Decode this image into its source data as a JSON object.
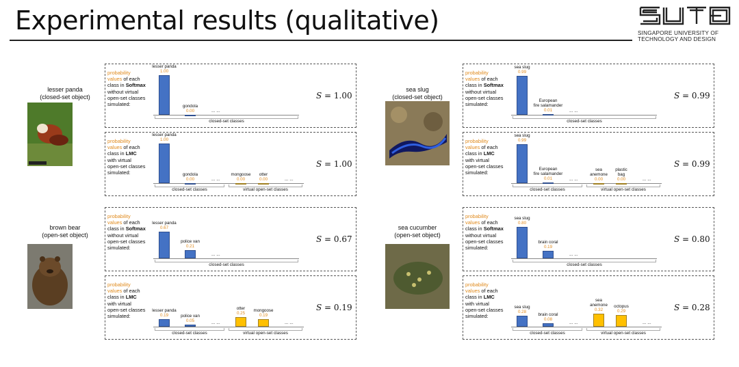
{
  "title": "Experimental results (qualitative)",
  "logo": {
    "line1": "SINGAPORE UNIVERSITY OF",
    "line2": "TECHNOLOGY AND DESIGN"
  },
  "desc": {
    "prob": "probability",
    "values": "values",
    "of_each": " of each",
    "class_in": "class in ",
    "softmax": "Softmax",
    "lmc": "LMC",
    "without": "without virtual",
    "with": "with virtual",
    "open_set": "open-set classes",
    "simulated": "simulated:"
  },
  "groups": {
    "closed": "closed-set classes",
    "virtual": "virtual open-set classes"
  },
  "dots": "... ...",
  "objects": [
    {
      "name": "lesser panda",
      "type": "(closed-set object)",
      "softmax": {
        "bars": [
          {
            "label": "lesser panda",
            "value": "1.00",
            "v": 1.0,
            "color": "blue"
          },
          {
            "label": "gondola",
            "value": "0.00",
            "v": 0.0,
            "color": "blue"
          }
        ],
        "score": "S = 1.00"
      },
      "lmc": {
        "bars": [
          {
            "label": "lesser panda",
            "value": "1.00",
            "v": 1.0,
            "color": "blue"
          },
          {
            "label": "gondola",
            "value": "0.00",
            "v": 0.0,
            "color": "blue"
          },
          {
            "label": "mongoose",
            "value": "0.00",
            "v": 0.0,
            "color": "yellow"
          },
          {
            "label": "otter",
            "value": "0.00",
            "v": 0.0,
            "color": "yellow"
          }
        ],
        "score": "S = 1.00"
      }
    },
    {
      "name": "brown bear",
      "type": "(open-set object)",
      "softmax": {
        "bars": [
          {
            "label": "lesser panda",
            "value": "0.67",
            "v": 0.67,
            "color": "blue"
          },
          {
            "label": "police van",
            "value": "0.21",
            "v": 0.21,
            "color": "blue"
          }
        ],
        "score": "S = 0.67"
      },
      "lmc": {
        "bars": [
          {
            "label": "lesser panda",
            "value": "0.19",
            "v": 0.19,
            "color": "blue"
          },
          {
            "label": "police van",
            "value": "0.05",
            "v": 0.05,
            "color": "blue"
          },
          {
            "label": "otter",
            "value": "0.25",
            "v": 0.25,
            "color": "yellow"
          },
          {
            "label": "mongoose",
            "value": "0.19",
            "v": 0.19,
            "color": "yellow"
          }
        ],
        "score": "S = 0.19"
      }
    },
    {
      "name": "sea slug",
      "type": "(closed-set object)",
      "softmax": {
        "bars": [
          {
            "label": "sea slug",
            "value": "0.99",
            "v": 0.99,
            "color": "blue"
          },
          {
            "label": "European\nfire salamander",
            "value": "0.01",
            "v": 0.01,
            "color": "blue"
          }
        ],
        "score": "S = 0.99"
      },
      "lmc": {
        "bars": [
          {
            "label": "sea slug",
            "value": "0.99",
            "v": 0.99,
            "color": "blue"
          },
          {
            "label": "European\nfire salamander",
            "value": "0.01",
            "v": 0.01,
            "color": "blue"
          },
          {
            "label": "sea\nanemone",
            "value": "0.00",
            "v": 0.0,
            "color": "yellow"
          },
          {
            "label": "plastic\nbag",
            "value": "0.00",
            "v": 0.0,
            "color": "yellow"
          }
        ],
        "score": "S = 0.99"
      }
    },
    {
      "name": "sea cucumber",
      "type": "(open-set object)",
      "softmax": {
        "bars": [
          {
            "label": "sea slug",
            "value": "0.80",
            "v": 0.8,
            "color": "blue"
          },
          {
            "label": "brain coral",
            "value": "0.19",
            "v": 0.19,
            "color": "blue"
          }
        ],
        "score": "S = 0.80"
      },
      "lmc": {
        "bars": [
          {
            "label": "sea slug",
            "value": "0.28",
            "v": 0.28,
            "color": "blue"
          },
          {
            "label": "brain coral",
            "value": "0.08",
            "v": 0.08,
            "color": "blue"
          },
          {
            "label": "sea\nanemone",
            "value": "0.32",
            "v": 0.32,
            "color": "yellow"
          },
          {
            "label": "octopus",
            "value": "0.29",
            "v": 0.29,
            "color": "yellow"
          }
        ],
        "score": "S = 0.28"
      }
    }
  ]
}
